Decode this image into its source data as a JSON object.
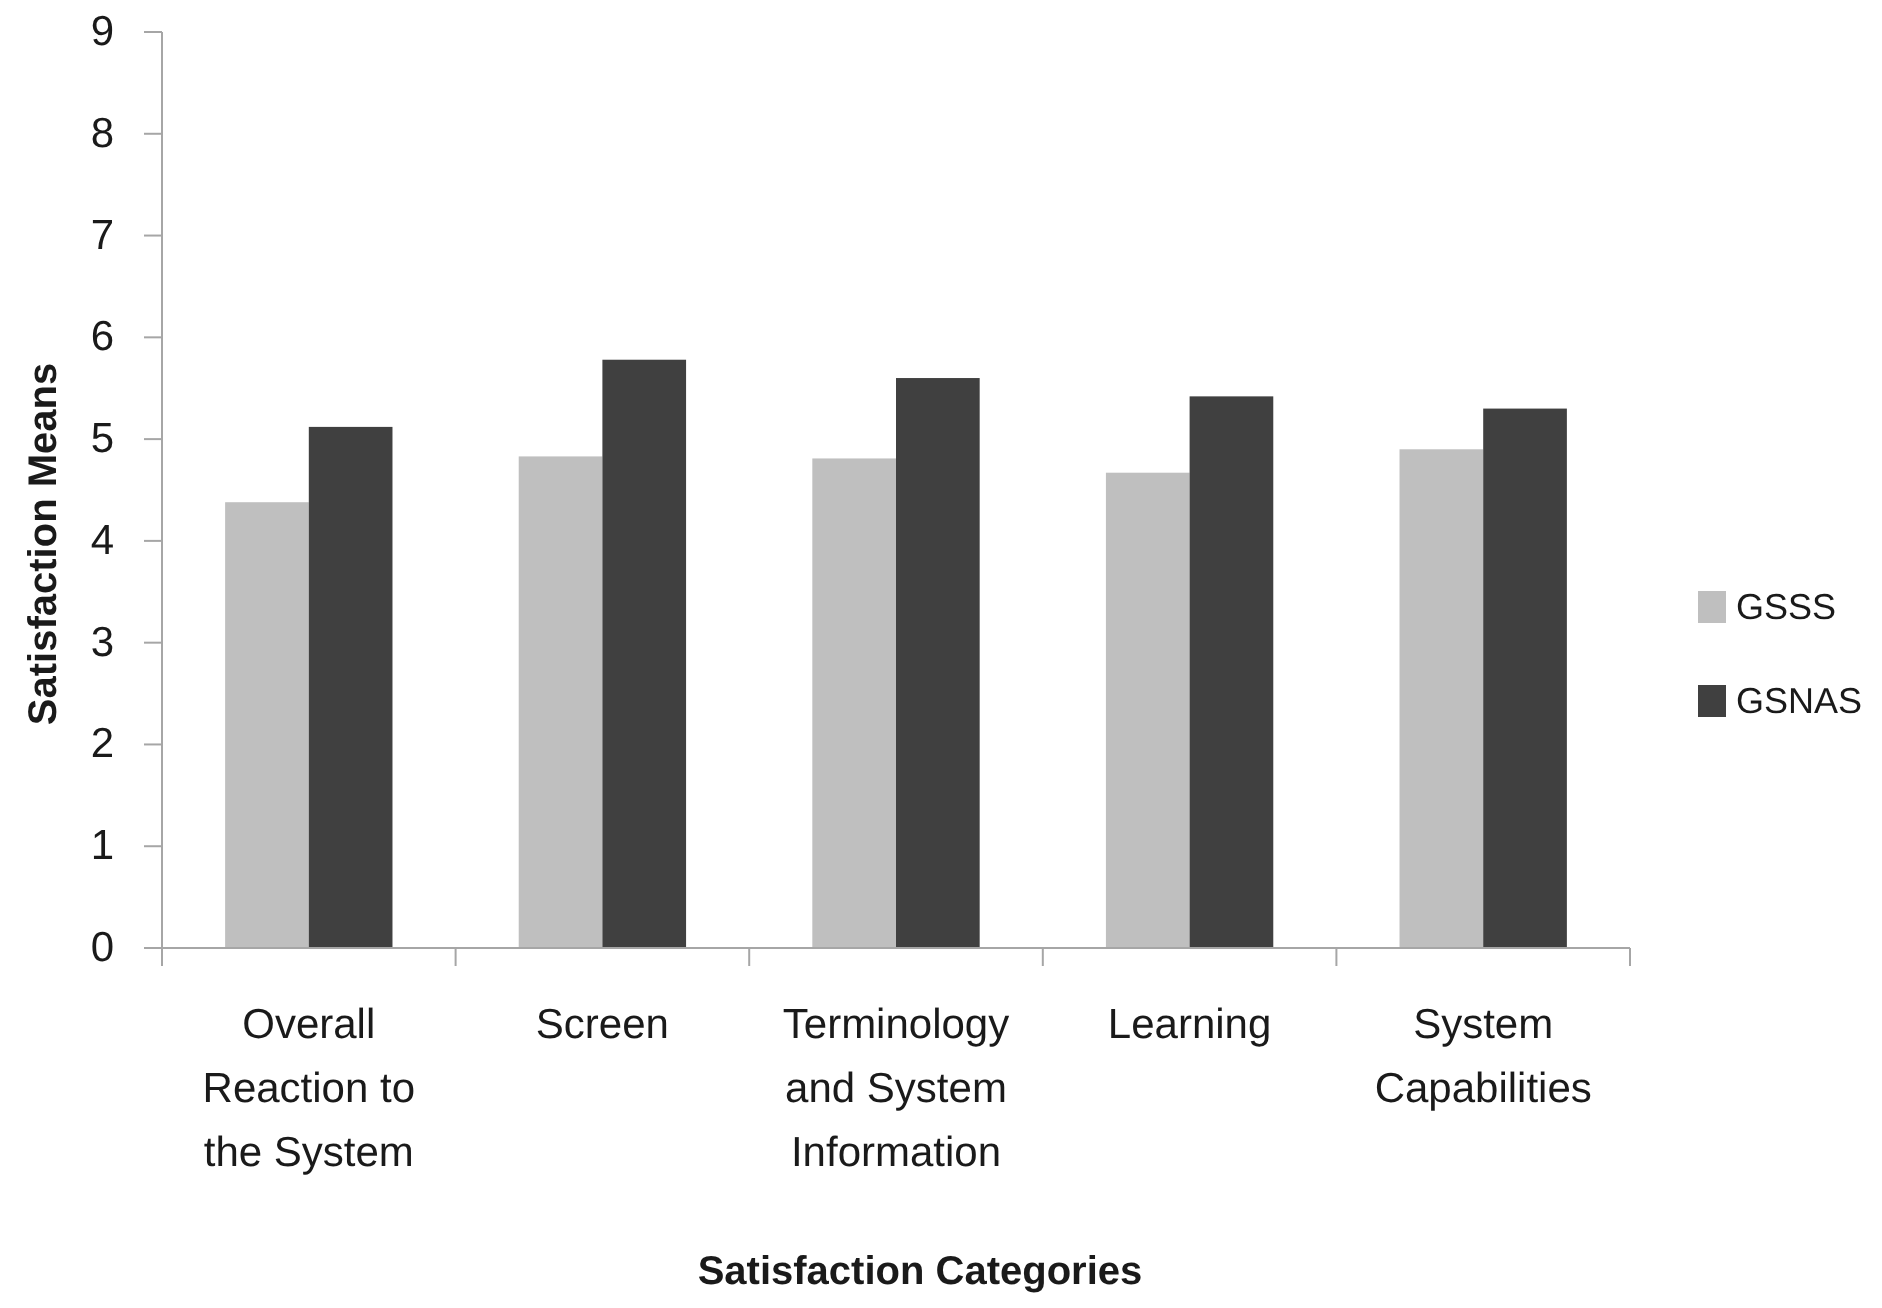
{
  "chart_data": {
    "type": "bar",
    "xlabel": "Satisfaction Categories",
    "ylabel": "Satisfaction Means",
    "categories": [
      "Overall Reaction to the System",
      "Screen",
      "Terminology and System Information",
      "Learning",
      "System Capabilities"
    ],
    "series": [
      {
        "name": "GSSS",
        "color": "#bfbfbf",
        "values": [
          4.38,
          4.83,
          4.81,
          4.67,
          4.9
        ]
      },
      {
        "name": "GSNAS",
        "color": "#404040",
        "values": [
          5.12,
          5.78,
          5.6,
          5.42,
          5.3
        ]
      }
    ],
    "ylim": [
      0,
      9
    ],
    "yticks": [
      0,
      1,
      2,
      3,
      4,
      5,
      6,
      7,
      8,
      9
    ],
    "legend": "right"
  }
}
